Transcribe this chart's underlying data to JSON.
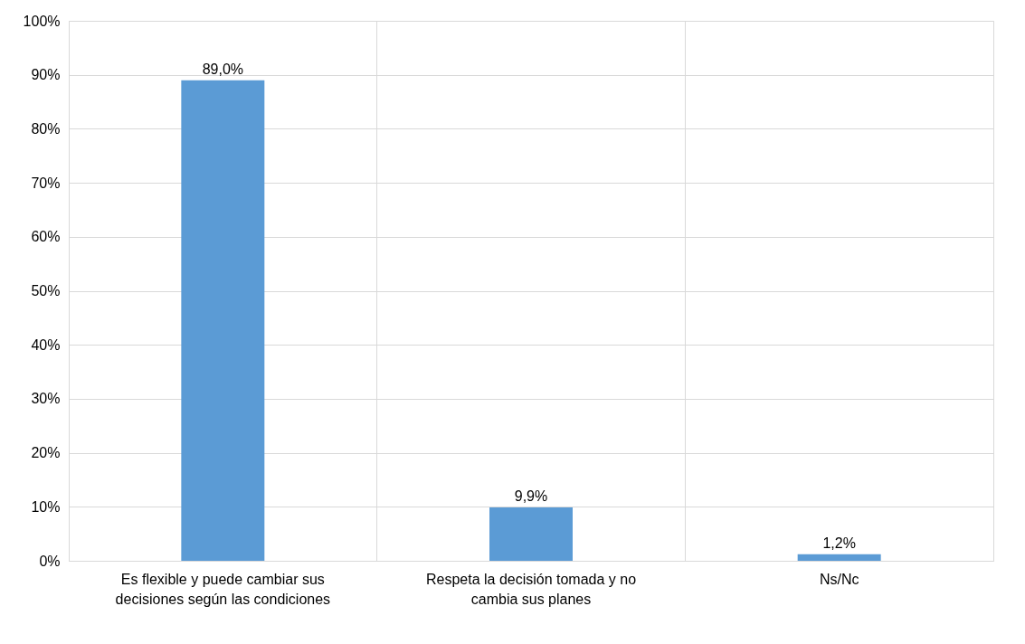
{
  "chart_data": {
    "type": "bar",
    "categories": [
      "Es flexible y puede cambiar sus decisiones según las condiciones",
      "Respeta la decisión tomada y no cambia sus planes",
      "Ns/Nc"
    ],
    "values": [
      89.0,
      9.9,
      1.2
    ],
    "value_labels": [
      "89,0%",
      "9,9%",
      "1,2%"
    ],
    "color": "#5b9bd5",
    "ylim": [
      0,
      100
    ],
    "yticks": [
      {
        "value": 0,
        "label": "0%"
      },
      {
        "value": 10,
        "label": "10%"
      },
      {
        "value": 20,
        "label": "20%"
      },
      {
        "value": 30,
        "label": "30%"
      },
      {
        "value": 40,
        "label": "40%"
      },
      {
        "value": 50,
        "label": "50%"
      },
      {
        "value": 60,
        "label": "60%"
      },
      {
        "value": 70,
        "label": "70%"
      },
      {
        "value": 80,
        "label": "80%"
      },
      {
        "value": 90,
        "label": "90%"
      },
      {
        "value": 100,
        "label": "100%"
      }
    ],
    "grid": true
  }
}
